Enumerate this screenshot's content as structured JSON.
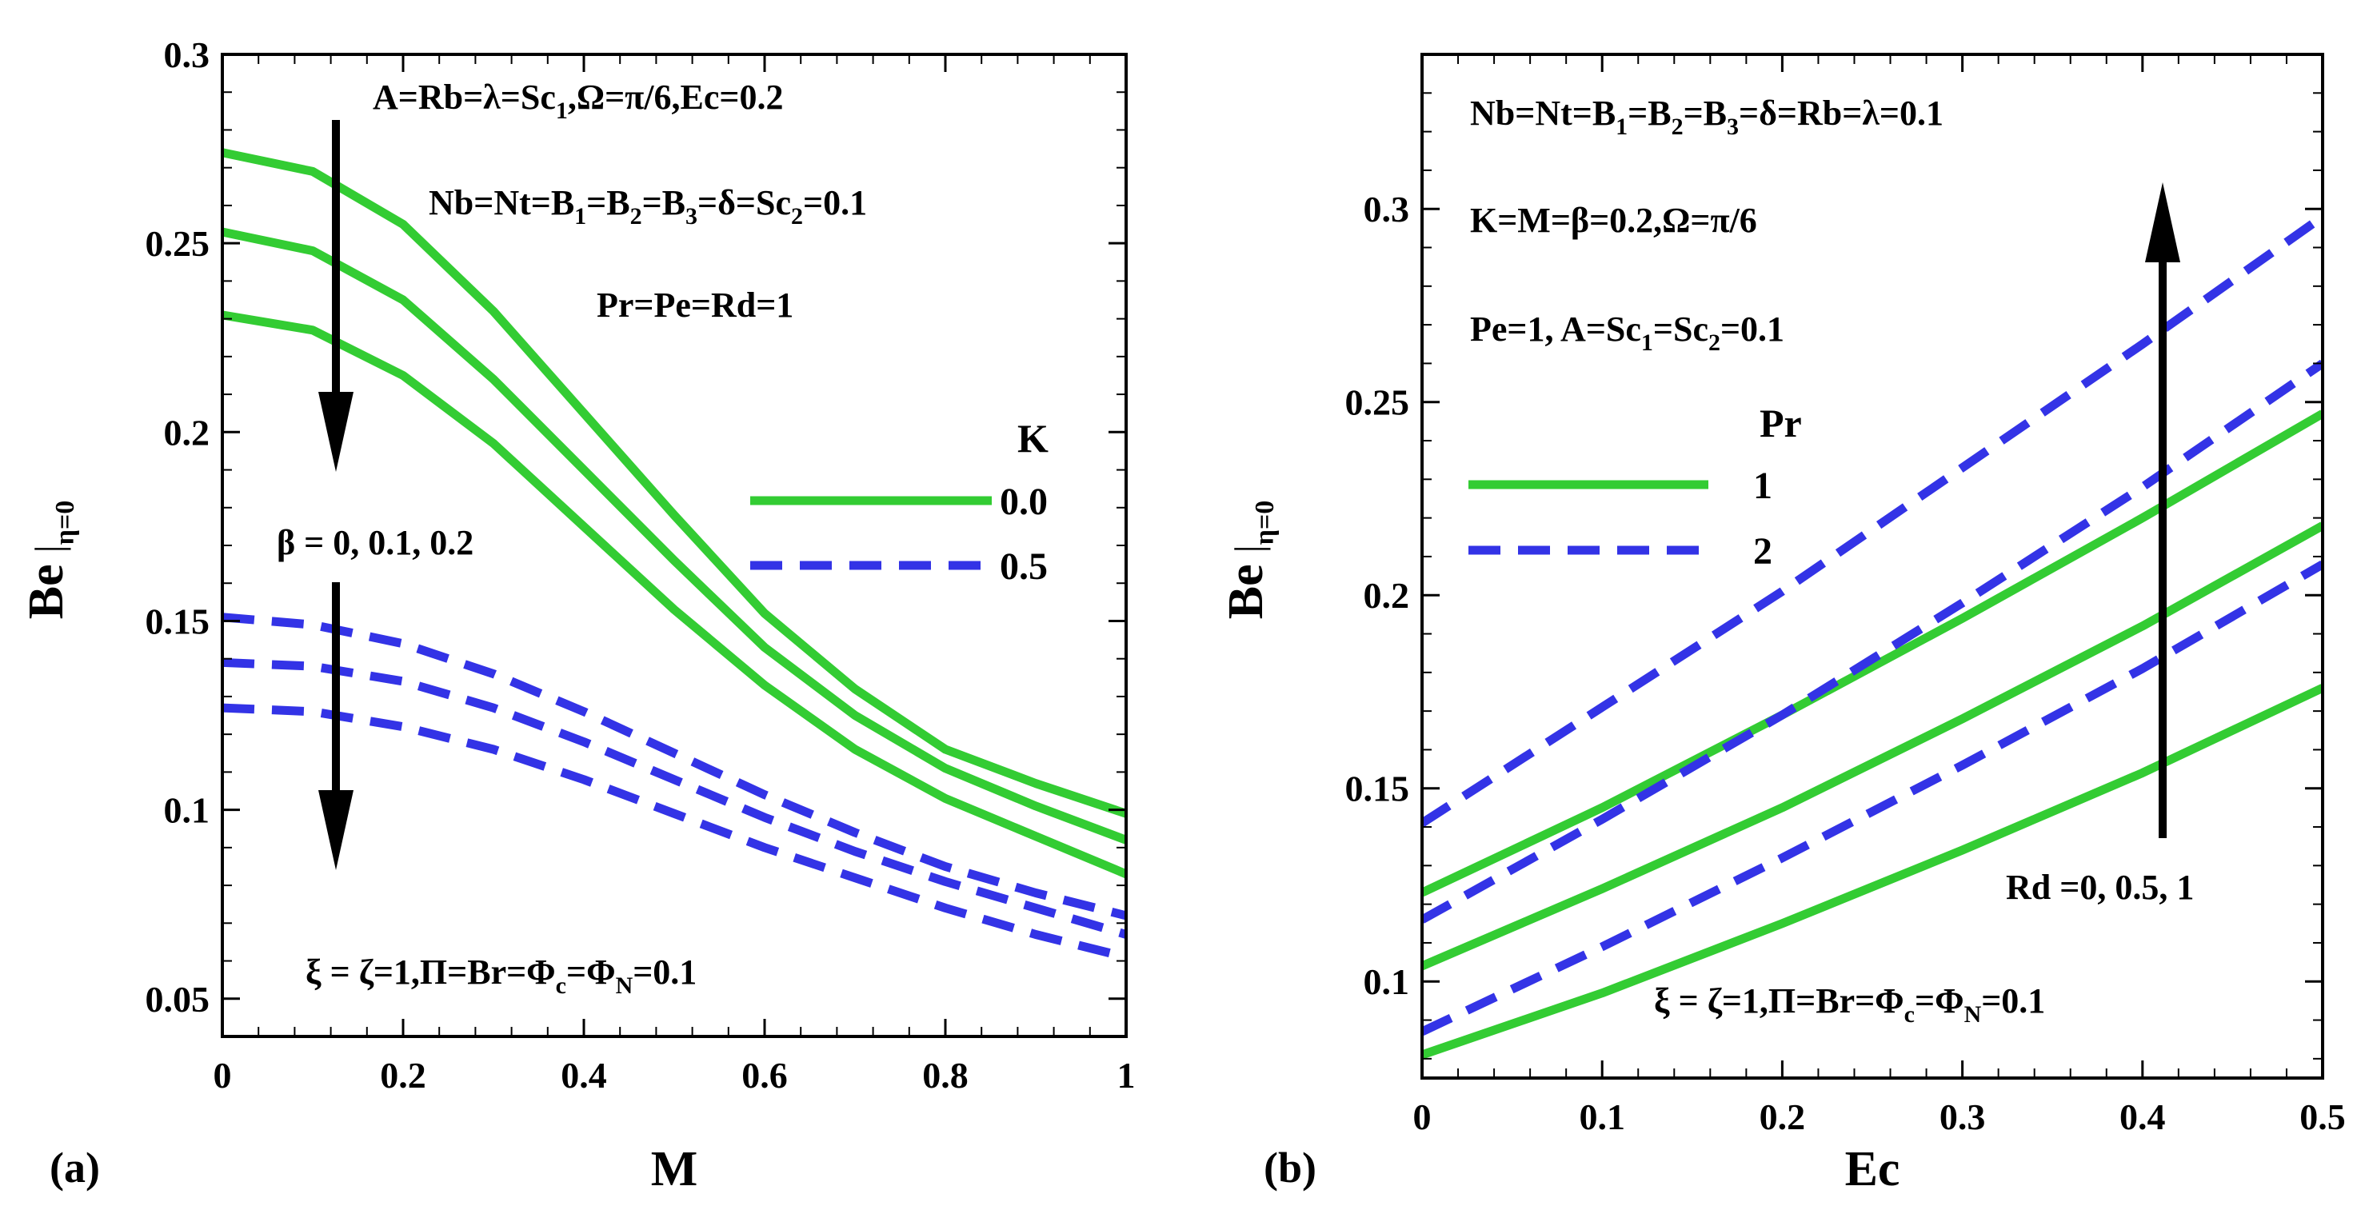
{
  "chart_data": [
    {
      "type": "line",
      "panel_label": "(a)",
      "xlabel": "M",
      "ylabel": "Be",
      "ylabel_sub": "η=0",
      "xlim": [
        0,
        1
      ],
      "ylim": [
        0.04,
        0.3
      ],
      "xticks": [
        0,
        0.2,
        0.4,
        0.6,
        0.8,
        1
      ],
      "xtick_labels": [
        "0",
        "0.2",
        "0.4",
        "0.6",
        "0.8",
        "1"
      ],
      "yticks": [
        0.05,
        0.1,
        0.15,
        0.2,
        0.25,
        0.3
      ],
      "ytick_labels": [
        "0.05",
        "0.1",
        "0.15",
        "0.2",
        "0.25",
        "0.3"
      ],
      "legend": {
        "title": "K",
        "entries": [
          {
            "label": "0.0",
            "style": "solid",
            "color": "#33cc33"
          },
          {
            "label": "0.5",
            "style": "dashed",
            "color": "#3333e6"
          }
        ]
      },
      "annotations": [
        {
          "parts": [
            {
              "t": "A=Rb=λ=Sc"
            },
            {
              "t": "1",
              "sub": true
            },
            {
              "t": ",Ω=π/6,Ec=0.2"
            }
          ]
        },
        {
          "parts": [
            {
              "t": "Nb=Nt=B"
            },
            {
              "t": "1",
              "sub": true
            },
            {
              "t": "=B"
            },
            {
              "t": "2",
              "sub": true
            },
            {
              "t": "=B"
            },
            {
              "t": "3",
              "sub": true
            },
            {
              "t": "=δ=Sc"
            },
            {
              "t": "2",
              "sub": true
            },
            {
              "t": "=0.1"
            }
          ]
        },
        {
          "parts": [
            {
              "t": "Pr=Pe=Rd=1"
            }
          ]
        },
        {
          "parts": [
            {
              "t": "β = 0, 0.1, 0.2"
            }
          ]
        },
        {
          "parts": [
            {
              "t": "ξ = ζ=1,Π=Br=Φ"
            },
            {
              "t": "c",
              "sub": true
            },
            {
              "t": "=Φ"
            },
            {
              "t": "N",
              "sub": true
            },
            {
              "t": "=0.1"
            }
          ]
        }
      ],
      "series": [
        {
          "name": "K=0.0, β=0",
          "style": "solid",
          "color": "#33cc33",
          "x": [
            0,
            0.1,
            0.2,
            0.3,
            0.4,
            0.5,
            0.6,
            0.7,
            0.8,
            0.9,
            1.0
          ],
          "y": [
            0.274,
            0.269,
            0.255,
            0.232,
            0.205,
            0.178,
            0.152,
            0.132,
            0.116,
            0.107,
            0.099
          ]
        },
        {
          "name": "K=0.0, β=0.1",
          "style": "solid",
          "color": "#33cc33",
          "x": [
            0,
            0.1,
            0.2,
            0.3,
            0.4,
            0.5,
            0.6,
            0.7,
            0.8,
            0.9,
            1.0
          ],
          "y": [
            0.253,
            0.248,
            0.235,
            0.214,
            0.19,
            0.166,
            0.143,
            0.125,
            0.111,
            0.101,
            0.092
          ]
        },
        {
          "name": "K=0.0, β=0.2",
          "style": "solid",
          "color": "#33cc33",
          "x": [
            0,
            0.1,
            0.2,
            0.3,
            0.4,
            0.5,
            0.6,
            0.7,
            0.8,
            0.9,
            1.0
          ],
          "y": [
            0.231,
            0.227,
            0.215,
            0.197,
            0.175,
            0.153,
            0.133,
            0.116,
            0.103,
            0.093,
            0.083
          ]
        },
        {
          "name": "K=0.5, β=0",
          "style": "dashed",
          "color": "#3333e6",
          "x": [
            0,
            0.1,
            0.2,
            0.3,
            0.4,
            0.5,
            0.6,
            0.7,
            0.8,
            0.9,
            1.0
          ],
          "y": [
            0.151,
            0.149,
            0.144,
            0.136,
            0.126,
            0.115,
            0.104,
            0.094,
            0.085,
            0.078,
            0.072
          ]
        },
        {
          "name": "K=0.5, β=0.1",
          "style": "dashed",
          "color": "#3333e6",
          "x": [
            0,
            0.1,
            0.2,
            0.3,
            0.4,
            0.5,
            0.6,
            0.7,
            0.8,
            0.9,
            1.0
          ],
          "y": [
            0.139,
            0.138,
            0.134,
            0.127,
            0.118,
            0.108,
            0.098,
            0.089,
            0.081,
            0.074,
            0.067
          ]
        },
        {
          "name": "K=0.5, β=0.2",
          "style": "dashed",
          "color": "#3333e6",
          "x": [
            0,
            0.1,
            0.2,
            0.3,
            0.4,
            0.5,
            0.6,
            0.7,
            0.8,
            0.9,
            1.0
          ],
          "y": [
            0.127,
            0.126,
            0.122,
            0.116,
            0.108,
            0.099,
            0.09,
            0.082,
            0.074,
            0.067,
            0.061
          ]
        }
      ]
    },
    {
      "type": "line",
      "panel_label": "(b)",
      "xlabel": "Ec",
      "ylabel": "Be",
      "ylabel_sub": "η=0",
      "xlim": [
        0,
        0.5
      ],
      "ylim": [
        0.075,
        0.34
      ],
      "xticks": [
        0,
        0.1,
        0.2,
        0.3,
        0.4,
        0.5
      ],
      "xtick_labels": [
        "0",
        "0.1",
        "0.2",
        "0.3",
        "0.4",
        "0.5"
      ],
      "yticks": [
        0.1,
        0.15,
        0.2,
        0.25,
        0.3
      ],
      "ytick_labels": [
        "0.1",
        "0.15",
        "0.2",
        "0.25",
        "0.3"
      ],
      "legend": {
        "title": "Pr",
        "entries": [
          {
            "label": "1",
            "style": "solid",
            "color": "#33cc33"
          },
          {
            "label": "2",
            "style": "dashed",
            "color": "#3333e6"
          }
        ]
      },
      "annotations": [
        {
          "parts": [
            {
              "t": "Nb=Nt=B"
            },
            {
              "t": "1",
              "sub": true
            },
            {
              "t": "=B"
            },
            {
              "t": "2",
              "sub": true
            },
            {
              "t": "=B"
            },
            {
              "t": "3",
              "sub": true
            },
            {
              "t": "=δ=Rb=λ=0.1"
            }
          ]
        },
        {
          "parts": [
            {
              "t": "K=M=β=0.2,Ω=π/6"
            }
          ]
        },
        {
          "parts": [
            {
              "t": "Pe=1, A=Sc"
            },
            {
              "t": "1",
              "sub": true
            },
            {
              "t": "=Sc"
            },
            {
              "t": "2",
              "sub": true
            },
            {
              "t": "=0.1"
            }
          ]
        },
        {
          "parts": [
            {
              "t": "Rd =0, 0.5, 1"
            }
          ]
        },
        {
          "parts": [
            {
              "t": "ξ = ζ=1,Π=Br=Φ"
            },
            {
              "t": "c",
              "sub": true
            },
            {
              "t": "=Φ"
            },
            {
              "t": "N",
              "sub": true
            },
            {
              "t": "=0.1"
            }
          ]
        }
      ],
      "series": [
        {
          "name": "Pr=1, Rd=0",
          "style": "solid",
          "color": "#33cc33",
          "x": [
            0,
            0.1,
            0.2,
            0.3,
            0.4,
            0.5
          ],
          "y": [
            0.081,
            0.097,
            0.115,
            0.134,
            0.154,
            0.176
          ]
        },
        {
          "name": "Pr=1, Rd=0.5",
          "style": "solid",
          "color": "#33cc33",
          "x": [
            0,
            0.1,
            0.2,
            0.3,
            0.4,
            0.5
          ],
          "y": [
            0.104,
            0.124,
            0.145,
            0.168,
            0.192,
            0.218
          ]
        },
        {
          "name": "Pr=1, Rd=1",
          "style": "solid",
          "color": "#33cc33",
          "x": [
            0,
            0.1,
            0.2,
            0.3,
            0.4,
            0.5
          ],
          "y": [
            0.123,
            0.145,
            0.169,
            0.194,
            0.22,
            0.247
          ]
        },
        {
          "name": "Pr=2, Rd=0",
          "style": "dashed",
          "color": "#3333e6",
          "x": [
            0,
            0.1,
            0.2,
            0.3,
            0.4,
            0.5
          ],
          "y": [
            0.087,
            0.109,
            0.132,
            0.156,
            0.181,
            0.208
          ]
        },
        {
          "name": "Pr=2, Rd=0.5",
          "style": "dashed",
          "color": "#3333e6",
          "x": [
            0,
            0.1,
            0.2,
            0.3,
            0.4,
            0.5
          ],
          "y": [
            0.116,
            0.142,
            0.169,
            0.198,
            0.228,
            0.26
          ]
        },
        {
          "name": "Pr=2, Rd=1",
          "style": "dashed",
          "color": "#3333e6",
          "x": [
            0,
            0.1,
            0.2,
            0.3,
            0.4,
            0.5
          ],
          "y": [
            0.141,
            0.171,
            0.201,
            0.233,
            0.265,
            0.298
          ]
        }
      ]
    }
  ]
}
